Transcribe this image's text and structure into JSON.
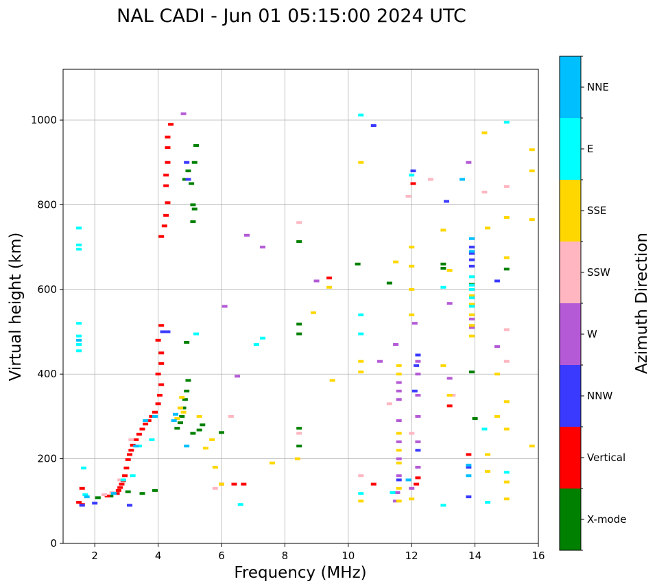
{
  "chart_data": {
    "type": "scatter",
    "title": "NAL CADI - Jun 01 05:15:00 2024 UTC",
    "xlabel": "Frequency (MHz)",
    "ylabel": "Virtual height (km)",
    "xlim": [
      1,
      16
    ],
    "ylim": [
      0,
      1120
    ],
    "xticks": [
      "2",
      "4",
      "6",
      "8",
      "10",
      "12",
      "14",
      "16"
    ],
    "yticks": [
      "0",
      "200",
      "400",
      "600",
      "800",
      "1000"
    ],
    "grid": true,
    "colorbar": {
      "label": "Azimuth Direction",
      "categories": [
        {
          "name": "X-mode",
          "color": "#008000"
        },
        {
          "name": "Vertical",
          "color": "#ff0000"
        },
        {
          "name": "NNW",
          "color": "#3a3aff"
        },
        {
          "name": "W",
          "color": "#b45ad6"
        },
        {
          "name": "SSW",
          "color": "#ffb6c1"
        },
        {
          "name": "SSE",
          "color": "#ffd700"
        },
        {
          "name": "E",
          "color": "#00ffff"
        },
        {
          "name": "NNE",
          "color": "#00bfff"
        }
      ]
    },
    "series": [
      {
        "name": "X-mode",
        "points": [
          [
            2.1,
            108
          ],
          [
            2.5,
            112
          ],
          [
            3.05,
            122
          ],
          [
            3.5,
            118
          ],
          [
            3.9,
            125
          ],
          [
            4.6,
            272
          ],
          [
            4.7,
            285
          ],
          [
            4.75,
            300
          ],
          [
            4.8,
            320
          ],
          [
            4.85,
            340
          ],
          [
            4.9,
            360
          ],
          [
            4.95,
            385
          ],
          [
            4.9,
            475
          ],
          [
            5.1,
            260
          ],
          [
            5.3,
            268
          ],
          [
            5.4,
            280
          ],
          [
            4.85,
            860
          ],
          [
            4.95,
            880
          ],
          [
            5.05,
            850
          ],
          [
            5.1,
            800
          ],
          [
            5.1,
            760
          ],
          [
            5.15,
            790
          ],
          [
            5.15,
            900
          ],
          [
            5.2,
            940
          ],
          [
            6.0,
            262
          ],
          [
            8.45,
            713
          ],
          [
            8.45,
            518
          ],
          [
            8.45,
            495
          ],
          [
            8.45,
            272
          ],
          [
            8.45,
            230
          ],
          [
            10.3,
            660
          ],
          [
            11.3,
            615
          ],
          [
            13.0,
            660
          ],
          [
            13.0,
            650
          ],
          [
            13.9,
            612
          ],
          [
            13.9,
            405
          ],
          [
            14.0,
            295
          ],
          [
            15.0,
            648
          ]
        ]
      },
      {
        "name": "Vertical",
        "points": [
          [
            1.5,
            97
          ],
          [
            1.6,
            92
          ],
          [
            1.6,
            130
          ],
          [
            2.4,
            112
          ],
          [
            2.7,
            118
          ],
          [
            2.75,
            125
          ],
          [
            2.8,
            132
          ],
          [
            2.85,
            140
          ],
          [
            2.9,
            148
          ],
          [
            2.95,
            160
          ],
          [
            3.0,
            178
          ],
          [
            3.05,
            198
          ],
          [
            3.1,
            210
          ],
          [
            3.15,
            220
          ],
          [
            3.2,
            232
          ],
          [
            3.3,
            245
          ],
          [
            3.4,
            258
          ],
          [
            3.5,
            270
          ],
          [
            3.6,
            282
          ],
          [
            3.7,
            290
          ],
          [
            3.8,
            300
          ],
          [
            3.9,
            310
          ],
          [
            4.0,
            330
          ],
          [
            4.05,
            350
          ],
          [
            4.1,
            375
          ],
          [
            4.0,
            400
          ],
          [
            4.1,
            425
          ],
          [
            4.1,
            450
          ],
          [
            4.0,
            480
          ],
          [
            4.1,
            515
          ],
          [
            4.1,
            725
          ],
          [
            4.2,
            750
          ],
          [
            4.25,
            775
          ],
          [
            4.3,
            805
          ],
          [
            4.25,
            845
          ],
          [
            4.25,
            870
          ],
          [
            4.3,
            900
          ],
          [
            4.3,
            935
          ],
          [
            4.3,
            960
          ],
          [
            4.4,
            990
          ],
          [
            6.0,
            140
          ],
          [
            6.4,
            140
          ],
          [
            6.7,
            140
          ],
          [
            9.4,
            627
          ],
          [
            10.8,
            140
          ],
          [
            12.05,
            850
          ],
          [
            12.15,
            140
          ],
          [
            12.2,
            155
          ],
          [
            13.2,
            325
          ],
          [
            13.8,
            210
          ]
        ]
      },
      {
        "name": "NNW",
        "points": [
          [
            1.6,
            90
          ],
          [
            2.0,
            95
          ],
          [
            3.1,
            90
          ],
          [
            4.15,
            500
          ],
          [
            4.3,
            500
          ],
          [
            4.9,
            900
          ],
          [
            4.95,
            860
          ],
          [
            10.8,
            987
          ],
          [
            11.6,
            150
          ],
          [
            12.05,
            880
          ],
          [
            12.1,
            360
          ],
          [
            12.15,
            420
          ],
          [
            12.2,
            445
          ],
          [
            12.2,
            220
          ],
          [
            13.1,
            808
          ],
          [
            13.9,
            700
          ],
          [
            13.9,
            685
          ],
          [
            13.9,
            670
          ],
          [
            13.9,
            655
          ],
          [
            14.7,
            620
          ],
          [
            13.8,
            180
          ],
          [
            13.8,
            110
          ]
        ]
      },
      {
        "name": "W",
        "points": [
          [
            4.8,
            1015
          ],
          [
            6.1,
            560
          ],
          [
            6.5,
            395
          ],
          [
            6.8,
            728
          ],
          [
            7.3,
            700
          ],
          [
            9.0,
            620
          ],
          [
            11.0,
            430
          ],
          [
            11.5,
            470
          ],
          [
            11.5,
            100
          ],
          [
            11.55,
            120
          ],
          [
            11.6,
            380
          ],
          [
            11.6,
            360
          ],
          [
            11.6,
            340
          ],
          [
            11.6,
            290
          ],
          [
            11.6,
            240
          ],
          [
            11.6,
            200
          ],
          [
            11.6,
            160
          ],
          [
            12.0,
            130
          ],
          [
            12.1,
            520
          ],
          [
            12.2,
            430
          ],
          [
            12.2,
            400
          ],
          [
            12.2,
            350
          ],
          [
            12.2,
            300
          ],
          [
            12.2,
            240
          ],
          [
            12.2,
            180
          ],
          [
            13.2,
            390
          ],
          [
            13.2,
            567
          ],
          [
            13.8,
            900
          ],
          [
            13.9,
            530
          ],
          [
            13.9,
            510
          ],
          [
            14.7,
            465
          ]
        ]
      },
      {
        "name": "SSW",
        "points": [
          [
            2.3,
            115
          ],
          [
            2.55,
            120
          ],
          [
            2.8,
            150
          ],
          [
            3.15,
            245
          ],
          [
            5.8,
            130
          ],
          [
            6.3,
            300
          ],
          [
            8.45,
            758
          ],
          [
            8.45,
            260
          ],
          [
            10.4,
            160
          ],
          [
            11.3,
            330
          ],
          [
            11.9,
            820
          ],
          [
            12.0,
            260
          ],
          [
            12.6,
            860
          ],
          [
            13.3,
            350
          ],
          [
            14.3,
            830
          ],
          [
            15.0,
            843
          ],
          [
            15.0,
            505
          ],
          [
            15.0,
            430
          ]
        ]
      },
      {
        "name": "SSE",
        "points": [
          [
            4.6,
            295
          ],
          [
            4.7,
            320
          ],
          [
            4.75,
            345
          ],
          [
            4.8,
            310
          ],
          [
            5.3,
            300
          ],
          [
            5.5,
            225
          ],
          [
            5.7,
            245
          ],
          [
            5.8,
            180
          ],
          [
            6.0,
            140
          ],
          [
            7.6,
            190
          ],
          [
            8.4,
            200
          ],
          [
            8.9,
            545
          ],
          [
            9.4,
            605
          ],
          [
            9.5,
            385
          ],
          [
            10.4,
            900
          ],
          [
            10.4,
            430
          ],
          [
            10.4,
            405
          ],
          [
            10.4,
            100
          ],
          [
            11.5,
            665
          ],
          [
            11.6,
            420
          ],
          [
            11.6,
            400
          ],
          [
            11.6,
            260
          ],
          [
            11.6,
            220
          ],
          [
            11.6,
            190
          ],
          [
            11.6,
            130
          ],
          [
            11.6,
            100
          ],
          [
            12.0,
            700
          ],
          [
            12.0,
            655
          ],
          [
            12.0,
            600
          ],
          [
            12.0,
            540
          ],
          [
            12.0,
            105
          ],
          [
            13.0,
            740
          ],
          [
            13.0,
            420
          ],
          [
            13.2,
            645
          ],
          [
            13.2,
            350
          ],
          [
            13.9,
            585
          ],
          [
            13.9,
            565
          ],
          [
            13.9,
            540
          ],
          [
            13.9,
            515
          ],
          [
            13.9,
            490
          ],
          [
            14.3,
            970
          ],
          [
            14.4,
            745
          ],
          [
            14.4,
            210
          ],
          [
            14.4,
            170
          ],
          [
            14.7,
            300
          ],
          [
            14.7,
            400
          ],
          [
            15.0,
            770
          ],
          [
            15.0,
            675
          ],
          [
            15.0,
            335
          ],
          [
            15.0,
            270
          ],
          [
            15.0,
            145
          ],
          [
            15.0,
            105
          ],
          [
            15.8,
            930
          ],
          [
            15.8,
            880
          ],
          [
            15.8,
            765
          ],
          [
            15.8,
            230
          ]
        ]
      },
      {
        "name": "E",
        "points": [
          [
            1.5,
            745
          ],
          [
            1.5,
            705
          ],
          [
            1.5,
            695
          ],
          [
            1.5,
            520
          ],
          [
            1.5,
            490
          ],
          [
            1.5,
            470
          ],
          [
            1.5,
            455
          ],
          [
            1.65,
            178
          ],
          [
            1.7,
            115
          ],
          [
            2.9,
            150
          ],
          [
            3.2,
            160
          ],
          [
            3.4,
            230
          ],
          [
            3.8,
            245
          ],
          [
            5.2,
            495
          ],
          [
            6.6,
            92
          ],
          [
            7.3,
            485
          ],
          [
            7.1,
            470
          ],
          [
            10.4,
            1012
          ],
          [
            10.4,
            540
          ],
          [
            10.4,
            495
          ],
          [
            10.4,
            118
          ],
          [
            11.4,
            120
          ],
          [
            12.0,
            870
          ],
          [
            13.0,
            605
          ],
          [
            13.0,
            90
          ],
          [
            13.9,
            630
          ],
          [
            13.9,
            610
          ],
          [
            13.9,
            600
          ],
          [
            13.9,
            580
          ],
          [
            13.9,
            560
          ],
          [
            14.3,
            270
          ],
          [
            14.4,
            97
          ],
          [
            15.0,
            995
          ],
          [
            15.0,
            168
          ]
        ]
      },
      {
        "name": "NNE",
        "points": [
          [
            1.5,
            480
          ],
          [
            1.75,
            110
          ],
          [
            2.6,
            118
          ],
          [
            3.3,
            230
          ],
          [
            3.6,
            290
          ],
          [
            3.9,
            300
          ],
          [
            4.5,
            290
          ],
          [
            4.55,
            305
          ],
          [
            4.9,
            230
          ],
          [
            11.9,
            150
          ],
          [
            13.6,
            860
          ],
          [
            13.9,
            720
          ],
          [
            13.9,
            690
          ],
          [
            13.8,
            185
          ],
          [
            13.8,
            160
          ]
        ]
      }
    ]
  }
}
